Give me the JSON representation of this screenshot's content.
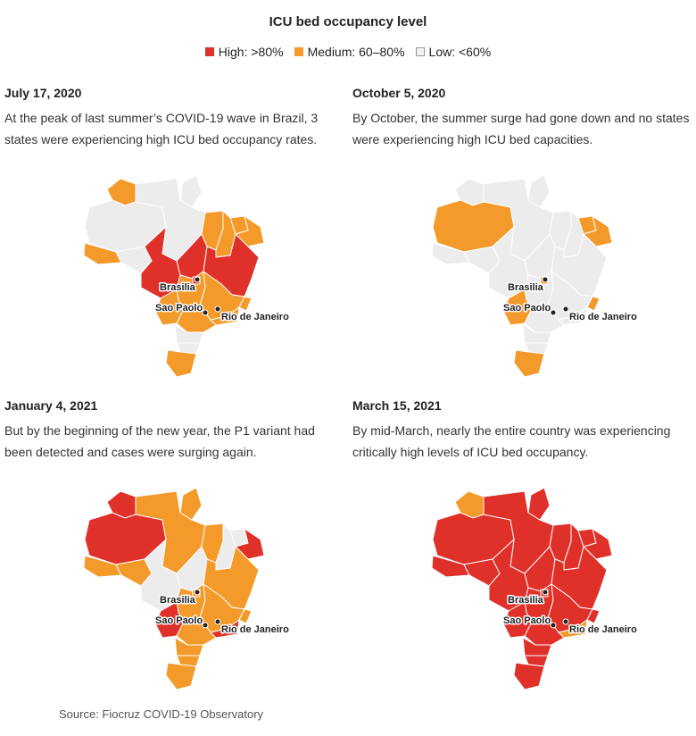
{
  "title": "ICU bed occupancy level",
  "legend": [
    {
      "key": "high",
      "label": "High: >80%",
      "color": "#e0302a"
    },
    {
      "key": "medium",
      "label": "Medium: 60–80%",
      "color": "#f39a2b"
    },
    {
      "key": "low",
      "label": "Low: <60%",
      "color": "#ececec"
    }
  ],
  "colors": {
    "high": "#e0302a",
    "medium": "#f39a2b",
    "low": "#ececec"
  },
  "panels": [
    {
      "date": "July 17, 2020",
      "description": "At the peak of last summer’s COVID-19 wave in Brazil, 3 states were experiencing high ICU bed occupancy rates.",
      "states": {
        "AM": "low",
        "RR": "medium",
        "AP": "low",
        "PA": "low",
        "AC": "medium",
        "RO": "low",
        "MT": "high",
        "TO": "high",
        "MA": "medium",
        "PI": "medium",
        "CE": "medium",
        "NE": "medium",
        "BA": "high",
        "GO": "medium",
        "DF": "high",
        "MS": "medium",
        "MG": "medium",
        "ES": "medium",
        "RJ": "medium",
        "SP": "medium",
        "PR": "low",
        "SC": "low",
        "RS": "medium"
      }
    },
    {
      "date": "October 5, 2020",
      "description": "By October, the summer surge had gone down and no states were experiencing high ICU bed capacities.",
      "states": {
        "AM": "medium",
        "RR": "low",
        "AP": "low",
        "PA": "low",
        "AC": "low",
        "RO": "low",
        "MT": "low",
        "TO": "low",
        "MA": "low",
        "PI": "low",
        "CE": "medium",
        "NE": "medium",
        "BA": "low",
        "GO": "low",
        "DF": "medium",
        "MS": "medium",
        "MG": "low",
        "ES": "medium",
        "RJ": "low",
        "SP": "low",
        "PR": "low",
        "SC": "low",
        "RS": "medium"
      }
    },
    {
      "date": "January 4, 2021",
      "description": "But by the beginning of the new year, the P1 variant had been detected and cases were surging again.",
      "states": {
        "AM": "high",
        "RR": "high",
        "AP": "medium",
        "PA": "medium",
        "AC": "medium",
        "RO": "medium",
        "MT": "low",
        "TO": "low",
        "MA": "medium",
        "PI": "low",
        "CE": "low",
        "NE": "high",
        "BA": "medium",
        "GO": "medium",
        "DF": "medium",
        "MS": "high",
        "MG": "medium",
        "ES": "medium",
        "RJ": "high",
        "SP": "medium",
        "PR": "medium",
        "SC": "medium",
        "RS": "medium"
      }
    },
    {
      "date": "March 15, 2021",
      "description": "By mid-March, nearly the entire country was experiencing critically high levels of ICU bed occupancy.",
      "states": {
        "AM": "high",
        "RR": "medium",
        "AP": "high",
        "PA": "high",
        "AC": "high",
        "RO": "high",
        "MT": "high",
        "TO": "high",
        "MA": "high",
        "PI": "high",
        "CE": "high",
        "NE": "high",
        "BA": "high",
        "GO": "high",
        "DF": "high",
        "MS": "high",
        "MG": "high",
        "ES": "high",
        "RJ": "medium",
        "SP": "high",
        "PR": "high",
        "SC": "high",
        "RS": "high"
      }
    }
  ],
  "cities": {
    "brasilia": "Brasilia",
    "sao_paulo": "Sao Paolo",
    "rio": "Rio de Janeiro"
  },
  "source": "Source: Fiocruz COVID-19 Observatory"
}
